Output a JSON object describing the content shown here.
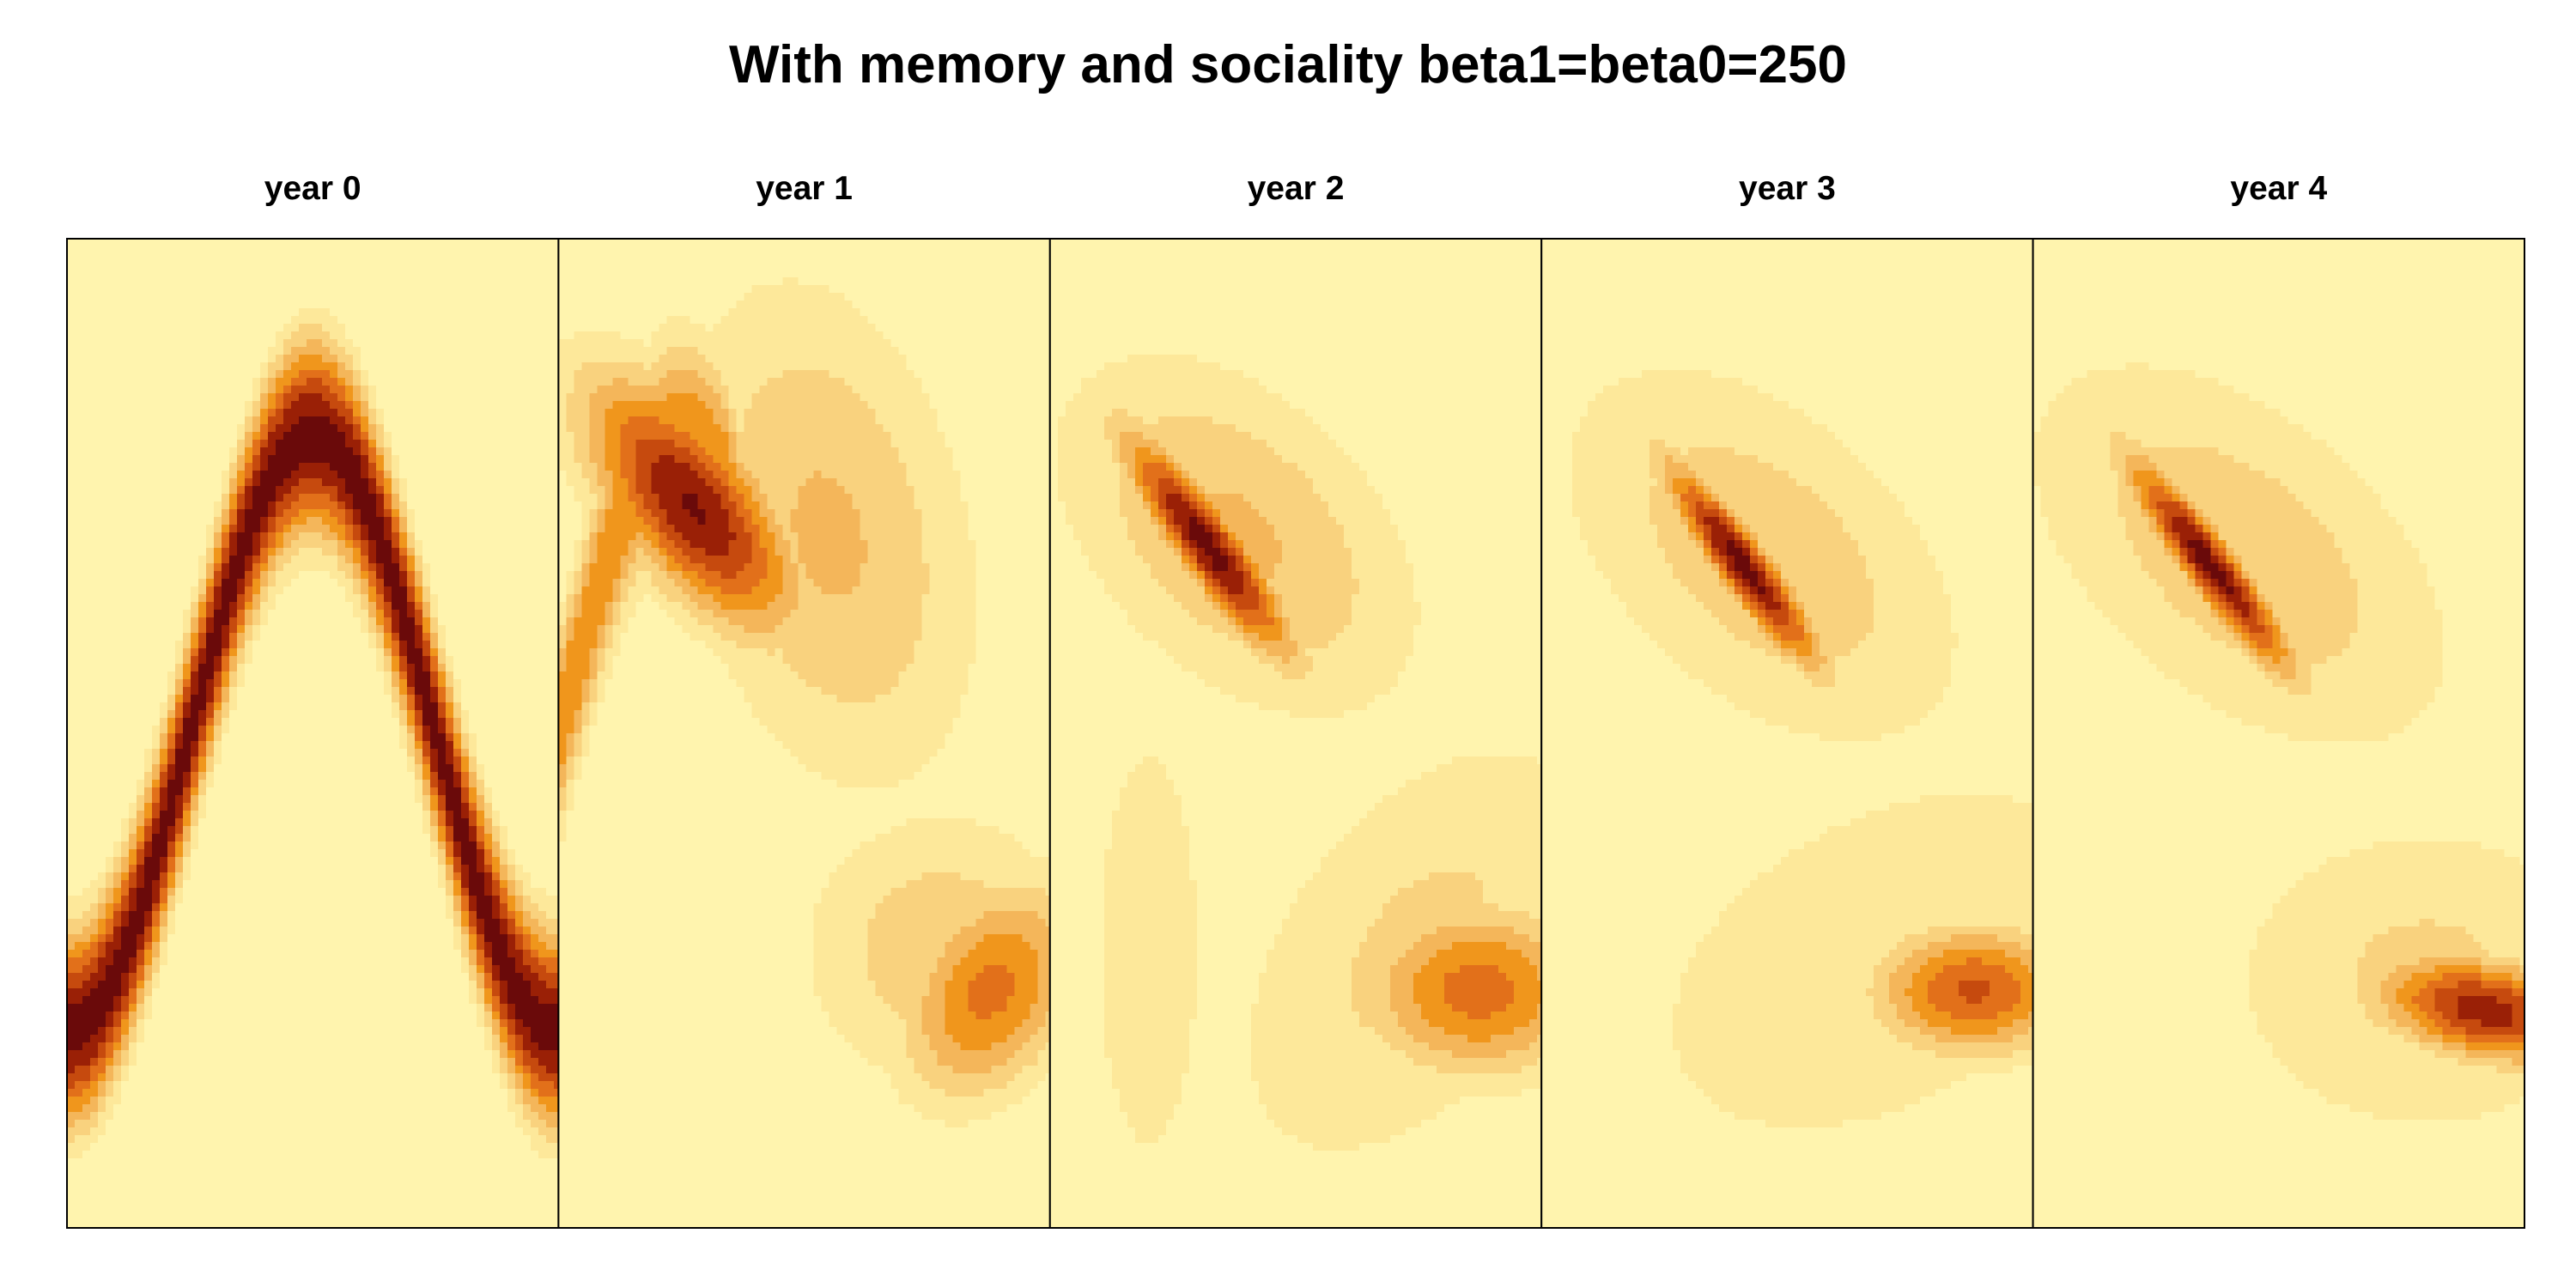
{
  "title": "With memory and sociality beta1=beta0=250",
  "colors": {
    "background": "#ffffc0",
    "scale": [
      "#ffffc0",
      "#fff4ae",
      "#fde89a",
      "#f9d27e",
      "#f4b65a",
      "#f0961c",
      "#e2701a",
      "#c64a0e",
      "#9a2006",
      "#6a0a0a"
    ],
    "frame": "#000000"
  },
  "chart_data": {
    "type": "heatmap",
    "colormap": "heat (light yellow to dark red)",
    "grid": false,
    "axes_shown": false,
    "panels": [
      {
        "label": "year 0",
        "features": [
          {
            "kind": "wave",
            "center_y": 0.5,
            "amplitude": 0.3,
            "phase": -0.25,
            "width": 0.065,
            "intensity": 1.0
          }
        ]
      },
      {
        "label": "year 1",
        "features": [
          {
            "kind": "wave",
            "center_y": 0.5,
            "amplitude": 0.3,
            "phase": 0.0,
            "width": 0.07,
            "intensity": 0.55,
            "x_from": 0.0,
            "x_to": 0.35
          },
          {
            "kind": "blob",
            "x": 0.27,
            "y": 0.27,
            "sx": 0.16,
            "sy": 0.06,
            "angle": 25,
            "intensity": 0.95
          },
          {
            "kind": "blob",
            "x": 0.55,
            "y": 0.3,
            "sx": 0.22,
            "sy": 0.16,
            "angle": 30,
            "intensity": 0.35
          },
          {
            "kind": "blob",
            "x": 0.88,
            "y": 0.76,
            "sx": 0.13,
            "sy": 0.07,
            "angle": -15,
            "intensity": 0.6
          },
          {
            "kind": "blob",
            "x": 0.78,
            "y": 0.72,
            "sx": 0.2,
            "sy": 0.1,
            "angle": 0,
            "intensity": 0.3
          }
        ]
      },
      {
        "label": "year 2",
        "features": [
          {
            "kind": "blob",
            "x": 0.32,
            "y": 0.31,
            "sx": 0.14,
            "sy": 0.03,
            "angle": 32,
            "intensity": 1.0
          },
          {
            "kind": "blob",
            "x": 0.38,
            "y": 0.3,
            "sx": 0.26,
            "sy": 0.11,
            "angle": 15,
            "intensity": 0.35
          },
          {
            "kind": "blob",
            "x": 0.87,
            "y": 0.76,
            "sx": 0.16,
            "sy": 0.06,
            "angle": 0,
            "intensity": 0.62
          },
          {
            "kind": "blob",
            "x": 0.75,
            "y": 0.72,
            "sx": 0.3,
            "sy": 0.14,
            "angle": -20,
            "intensity": 0.25
          },
          {
            "kind": "blob",
            "x": 0.2,
            "y": 0.72,
            "sx": 0.15,
            "sy": 0.3,
            "angle": 0,
            "intensity": 0.15
          }
        ]
      },
      {
        "label": "year 3",
        "features": [
          {
            "kind": "blob",
            "x": 0.41,
            "y": 0.33,
            "sx": 0.13,
            "sy": 0.025,
            "angle": 32,
            "intensity": 1.0
          },
          {
            "kind": "blob",
            "x": 0.45,
            "y": 0.32,
            "sx": 0.3,
            "sy": 0.12,
            "angle": 15,
            "intensity": 0.3
          },
          {
            "kind": "blob",
            "x": 0.88,
            "y": 0.76,
            "sx": 0.14,
            "sy": 0.045,
            "angle": 0,
            "intensity": 0.7
          },
          {
            "kind": "blob",
            "x": 0.7,
            "y": 0.73,
            "sx": 0.4,
            "sy": 0.14,
            "angle": -10,
            "intensity": 0.22
          }
        ]
      },
      {
        "label": "year 4",
        "features": [
          {
            "kind": "blob",
            "x": 0.36,
            "y": 0.33,
            "sx": 0.14,
            "sy": 0.025,
            "angle": 32,
            "intensity": 1.0
          },
          {
            "kind": "blob",
            "x": 0.42,
            "y": 0.32,
            "sx": 0.32,
            "sy": 0.12,
            "angle": 15,
            "intensity": 0.3
          },
          {
            "kind": "blob",
            "x": 0.92,
            "y": 0.78,
            "sx": 0.15,
            "sy": 0.035,
            "angle": 5,
            "intensity": 0.88
          },
          {
            "kind": "blob",
            "x": 0.8,
            "y": 0.75,
            "sx": 0.3,
            "sy": 0.12,
            "angle": 0,
            "intensity": 0.25
          }
        ]
      }
    ]
  }
}
